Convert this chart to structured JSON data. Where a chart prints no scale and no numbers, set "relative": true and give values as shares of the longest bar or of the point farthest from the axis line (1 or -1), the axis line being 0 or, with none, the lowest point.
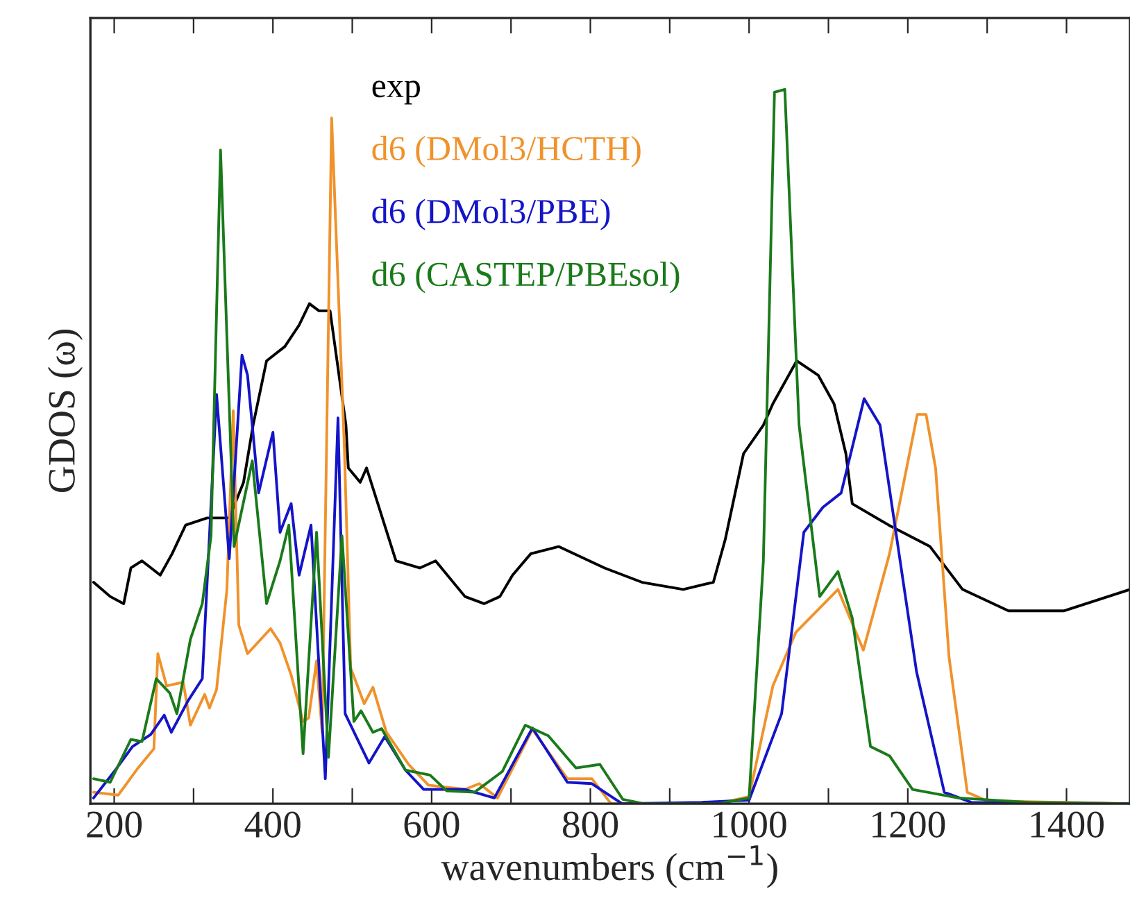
{
  "chart_data": {
    "type": "line",
    "relative": true,
    "xlabel": "wavenumbers (cm$^{−1}$)",
    "ylabel": "GDOS (ω)",
    "xlim": [
      170,
      1480
    ],
    "xticks": [
      200,
      {
        "value": 300,
        "label": null
      },
      400,
      {
        "value": 500,
        "label": null
      },
      600,
      {
        "value": 700,
        "label": null
      },
      800,
      {
        "value": 900,
        "label": null
      },
      1000,
      {
        "value": 1100,
        "label": null
      },
      1200,
      {
        "value": 1300,
        "label": null
      },
      1400
    ],
    "legend": "top left",
    "grid": false,
    "line_style": "solid",
    "series": [
      {
        "name": "exp",
        "color": "#000000",
        "x": [
          174,
          195,
          212,
          221,
          235,
          258,
          273,
          290,
          317,
          345,
          363,
          375,
          392,
          415,
          433,
          446,
          458,
          472,
          492,
          495,
          510,
          518,
          555,
          585,
          605,
          642,
          666,
          686,
          702,
          725,
          760,
          818,
          865,
          917,
          955,
          970,
          993,
          1018,
          1030,
          1060,
          1087,
          1107,
          1122,
          1130,
          1176,
          1228,
          1269,
          1327,
          1397,
          1480
        ],
        "values": [
          0.31,
          0.29,
          0.28,
          0.33,
          0.34,
          0.32,
          0.35,
          0.39,
          0.4,
          0.4,
          0.45,
          0.53,
          0.62,
          0.64,
          0.67,
          0.7,
          0.69,
          0.69,
          0.53,
          0.47,
          0.45,
          0.47,
          0.34,
          0.33,
          0.34,
          0.29,
          0.28,
          0.29,
          0.32,
          0.35,
          0.36,
          0.33,
          0.31,
          0.3,
          0.31,
          0.37,
          0.49,
          0.53,
          0.56,
          0.62,
          0.6,
          0.56,
          0.49,
          0.42,
          0.39,
          0.36,
          0.3,
          0.27,
          0.27,
          0.3
        ]
      },
      {
        "name": "d6 (DMol3/HCTH)",
        "color": "#f0922b",
        "x": [
          174,
          205,
          230,
          250,
          255,
          266,
          287,
          296,
          314,
          320,
          329,
          342,
          350,
          357,
          368,
          397,
          409,
          423,
          438,
          445,
          455,
          462,
          474,
          490,
          498,
          515,
          526,
          543,
          571,
          596,
          642,
          660,
          683,
          727,
          771,
          802,
          826,
          960,
          1000,
          1030,
          1059,
          1112,
          1144,
          1177,
          1212,
          1223,
          1235,
          1252,
          1275,
          1300,
          1480
        ],
        "values": [
          0.016,
          0.012,
          0.05,
          0.077,
          0.21,
          0.165,
          0.17,
          0.11,
          0.153,
          0.134,
          0.16,
          0.3,
          0.55,
          0.25,
          0.21,
          0.245,
          0.225,
          0.18,
          0.115,
          0.12,
          0.2,
          0.1,
          0.96,
          0.5,
          0.19,
          0.14,
          0.163,
          0.1,
          0.055,
          0.026,
          0.02,
          0.028,
          0.008,
          0.104,
          0.035,
          0.035,
          0.0,
          0.0,
          0.01,
          0.165,
          0.24,
          0.3,
          0.215,
          0.35,
          0.545,
          0.545,
          0.47,
          0.205,
          0.016,
          0.004,
          0.0
        ]
      },
      {
        "name": "d6 (DMol3/PBE)",
        "color": "#1414c8",
        "x": [
          174,
          200,
          223,
          246,
          263,
          272,
          293,
          311,
          329,
          345,
          361,
          368,
          382,
          400,
          409,
          423,
          433,
          448,
          466,
          482,
          491,
          521,
          541,
          567,
          590,
          642,
          679,
          727,
          771,
          802,
          840,
          940,
          1000,
          1041,
          1069,
          1093,
          1116,
          1145,
          1165,
          1211,
          1246,
          1280,
          1480
        ],
        "values": [
          0.008,
          0.045,
          0.08,
          0.097,
          0.124,
          0.1,
          0.144,
          0.175,
          0.573,
          0.343,
          0.628,
          0.6,
          0.435,
          0.52,
          0.38,
          0.42,
          0.32,
          0.39,
          0.035,
          0.54,
          0.126,
          0.057,
          0.094,
          0.047,
          0.02,
          0.02,
          0.008,
          0.106,
          0.03,
          0.028,
          0.0,
          0.002,
          0.005,
          0.126,
          0.38,
          0.415,
          0.435,
          0.567,
          0.53,
          0.185,
          0.016,
          0.002,
          0.0
        ]
      },
      {
        "name": "d6 (CASTEP/PBEsol)",
        "color": "#1a7a1a",
        "x": [
          174,
          195,
          221,
          235,
          253,
          270,
          279,
          296,
          311,
          322,
          334,
          351,
          374,
          392,
          409,
          420,
          438,
          455,
          470,
          487,
          502,
          511,
          526,
          537,
          567,
          598,
          619,
          654,
          689,
          718,
          747,
          782,
          812,
          841,
          867,
          960,
          1000,
          1018,
          1032,
          1045,
          1063,
          1089,
          1112,
          1130,
          1153,
          1177,
          1206,
          1264,
          1352,
          1480
        ],
        "values": [
          0.035,
          0.03,
          0.09,
          0.087,
          0.175,
          0.155,
          0.126,
          0.23,
          0.28,
          0.375,
          0.915,
          0.36,
          0.48,
          0.28,
          0.34,
          0.39,
          0.07,
          0.38,
          0.065,
          0.375,
          0.115,
          0.13,
          0.1,
          0.105,
          0.047,
          0.04,
          0.018,
          0.016,
          0.045,
          0.11,
          0.095,
          0.05,
          0.055,
          0.006,
          0.0,
          0.0,
          0.008,
          0.34,
          0.996,
          1.0,
          0.53,
          0.29,
          0.325,
          0.26,
          0.08,
          0.067,
          0.02,
          0.008,
          0.002,
          0.0
        ]
      }
    ]
  }
}
